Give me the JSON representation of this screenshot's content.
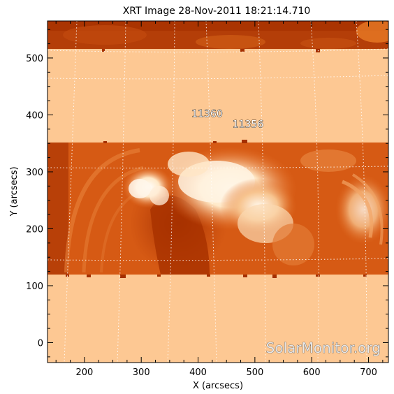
{
  "title": "XRT Image 28-Nov-2011 18:21:14.710",
  "xlabel": "X (arcsecs)",
  "ylabel": "Y (arcsecs)",
  "x_ticks": [
    200,
    300,
    400,
    500,
    600,
    700
  ],
  "y_ticks": [
    0,
    100,
    200,
    300,
    400,
    500
  ],
  "x_range": [
    135,
    735
  ],
  "y_range": [
    -35,
    565
  ],
  "active_regions": [
    {
      "label": "11360",
      "x": 416,
      "y": 396
    },
    {
      "label": "11356",
      "x": 488,
      "y": 378
    }
  ],
  "watermark": "SolarMonitor.org",
  "colors": {
    "background_fill": "#fdc893",
    "disk_dark": "#a53000",
    "disk_mid": "#d85a12",
    "bright": "#fff4e0",
    "grid": "#ffffff"
  }
}
